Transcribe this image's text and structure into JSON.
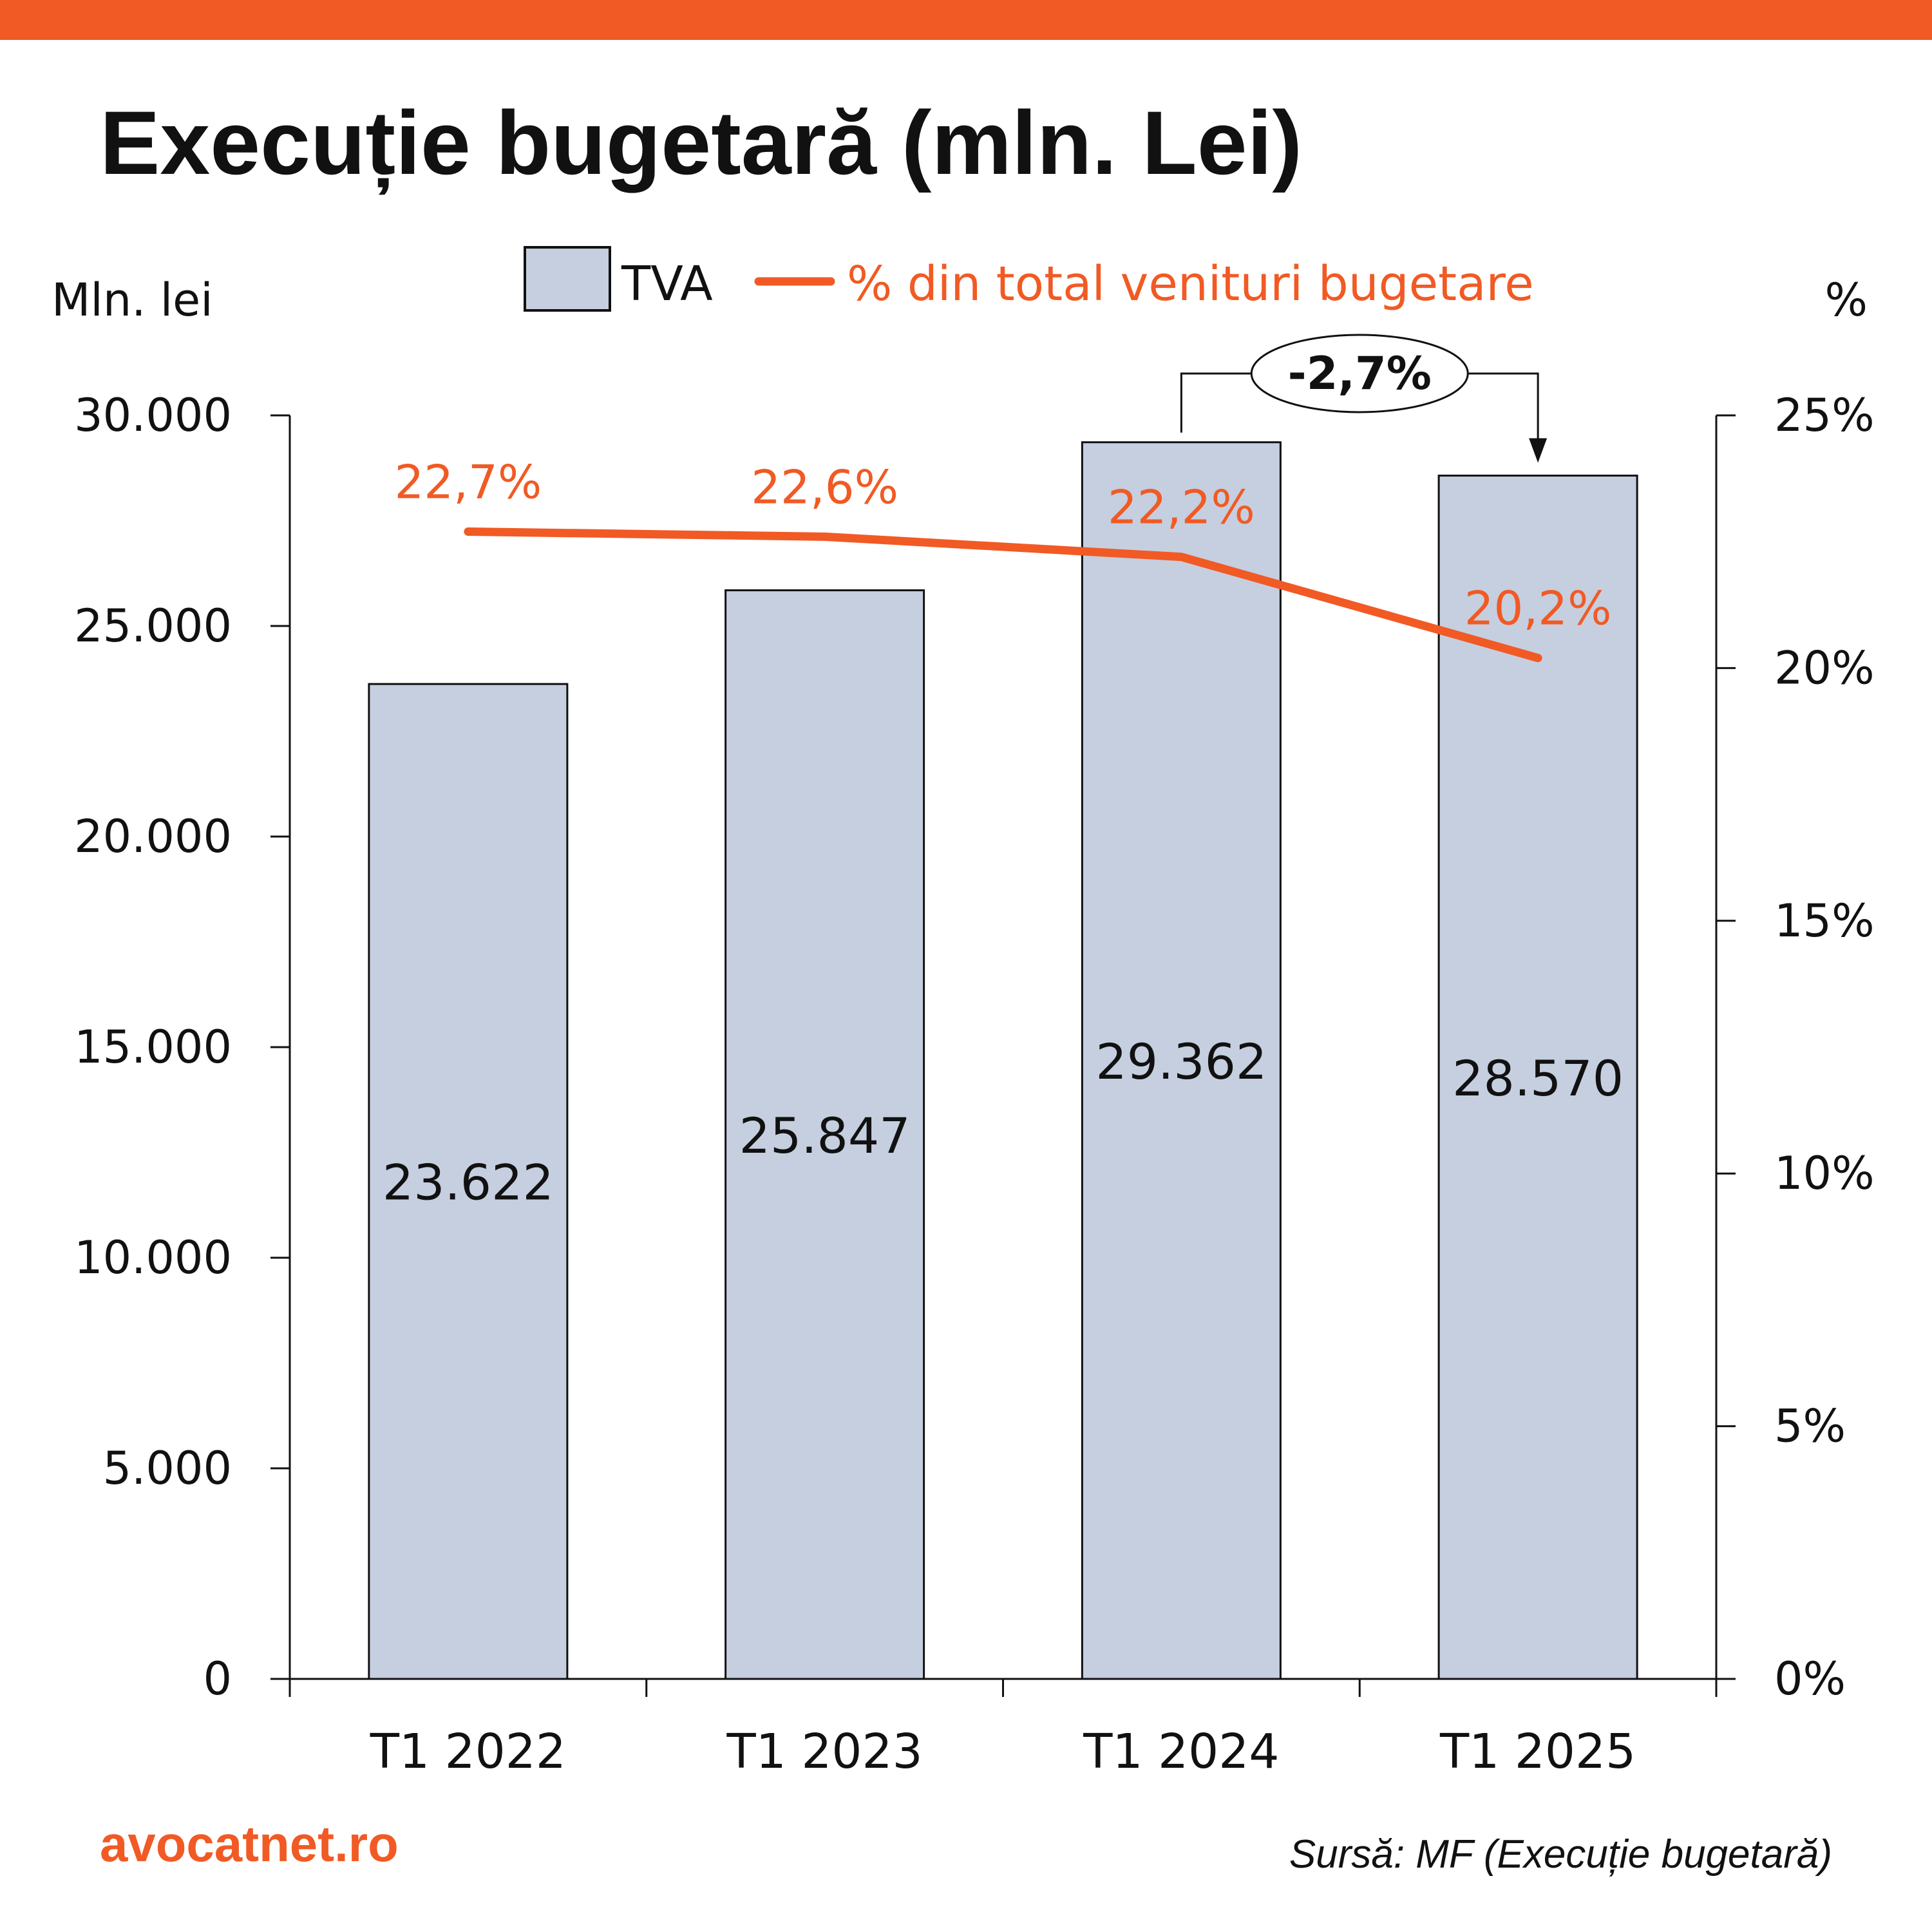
{
  "title": "Execuție bugetară (mln. Lei)",
  "colors": {
    "accent": "#F15A24",
    "bar_fill": "#C5CFE0",
    "bar_stroke": "#111111",
    "text": "#111111"
  },
  "legend": {
    "bar_label": "TVA",
    "line_label": "% din total venituri bugetare"
  },
  "chart_data": {
    "type": "bar",
    "categories": [
      "T1 2022",
      "T1 2023",
      "T1 2024",
      "T1 2025"
    ],
    "series": [
      {
        "name": "TVA",
        "type": "bar",
        "axis": "left",
        "values": [
          23622,
          25847,
          29362,
          28570
        ],
        "labels": [
          "23.622",
          "25.847",
          "29.362",
          "28.570"
        ]
      },
      {
        "name": "% din total venituri bugetare",
        "type": "line",
        "axis": "right",
        "values": [
          22.7,
          22.6,
          22.2,
          20.2
        ],
        "labels": [
          "22,7%",
          "22,6%",
          "22,2%",
          "20,2%"
        ]
      }
    ],
    "y_left": {
      "label": "Mln. lei",
      "lim": [
        0,
        30000
      ],
      "ticks": [
        0,
        5000,
        10000,
        15000,
        20000,
        25000,
        30000
      ],
      "tick_labels": [
        "0",
        "5.000",
        "10.000",
        "15.000",
        "20.000",
        "25.000",
        "30.000"
      ]
    },
    "y_right": {
      "label": "%",
      "lim": [
        0,
        25
      ],
      "ticks": [
        0,
        5,
        10,
        15,
        20,
        25
      ],
      "tick_labels": [
        "0%",
        "5%",
        "10%",
        "15%",
        "20%",
        "25%"
      ]
    },
    "annotation": {
      "text": "-2,7%",
      "from_category": "T1 2024",
      "to_category": "T1 2025"
    },
    "grid": false,
    "legend_position": "top"
  },
  "footer": {
    "brand": "avocatnet.ro",
    "source": "Sursă: MF (Execuție bugetară)"
  }
}
